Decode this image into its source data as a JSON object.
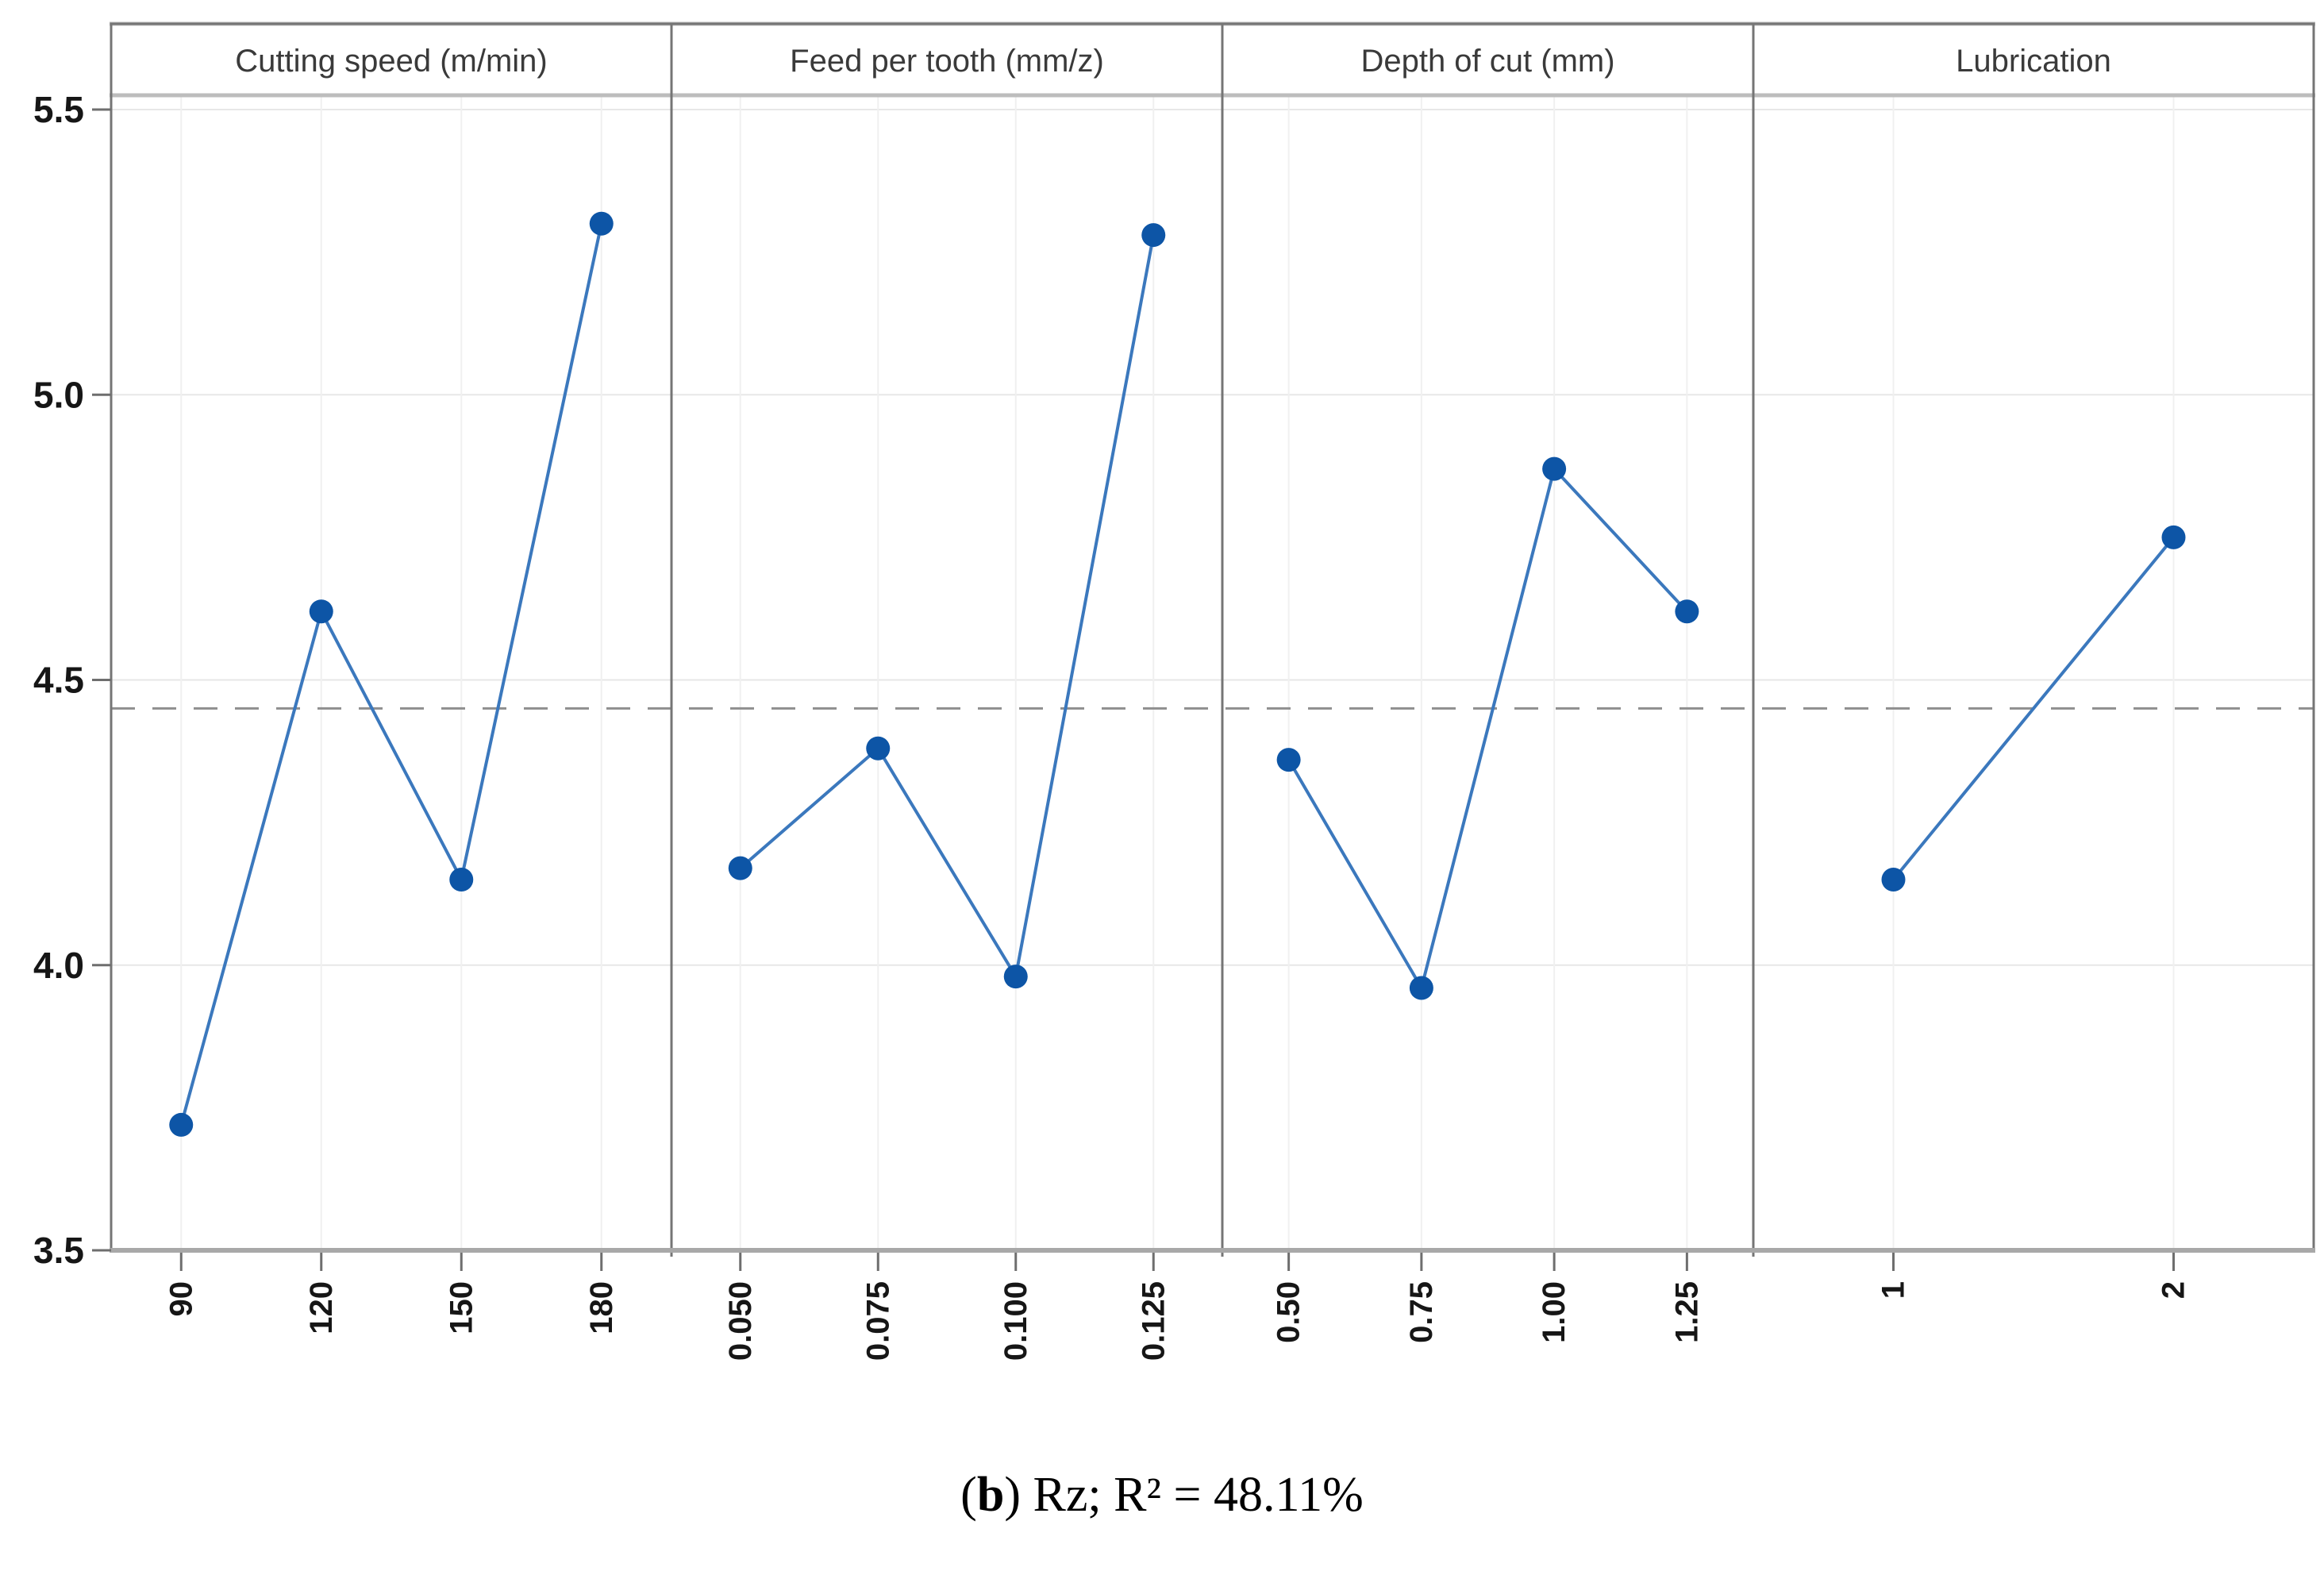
{
  "figure": {
    "caption": {
      "open": "(",
      "letter": "b",
      "close": ")",
      "text": " Rz; R² = 48.11%"
    }
  },
  "chart_data": {
    "type": "line",
    "subtype": "main-effects-plot",
    "title": "",
    "xlabel": "",
    "ylabel": "",
    "ylim": [
      3.5,
      5.53
    ],
    "yticks": [
      5.5,
      5.0,
      4.5,
      4.0,
      3.5
    ],
    "ytick_labels": [
      "5.5",
      "5.0",
      "4.5",
      "4.0",
      "3.5"
    ],
    "reference_line_mean": 4.45,
    "grid": true,
    "legend": "none",
    "panels": [
      {
        "title": "Cutting speed (m/min)",
        "categories": [
          "90",
          "120",
          "150",
          "180"
        ],
        "values": [
          3.72,
          4.62,
          4.15,
          5.3
        ]
      },
      {
        "title": "Feed per tooth (mm/z)",
        "categories": [
          "0.050",
          "0.075",
          "0.100",
          "0.125"
        ],
        "values": [
          4.17,
          4.38,
          3.98,
          5.28
        ]
      },
      {
        "title": "Depth of cut (mm)",
        "categories": [
          "0.50",
          "0.75",
          "1.00",
          "1.25"
        ],
        "values": [
          4.36,
          3.96,
          4.87,
          4.62
        ]
      },
      {
        "title": "Lubrication",
        "categories": [
          "1",
          "2"
        ],
        "values": [
          4.15,
          4.75
        ]
      }
    ],
    "colors": {
      "marker": "#0d55a6",
      "line": "#3b78bd",
      "grid_h": "#e7e7e7",
      "grid_v": "#f0f0f0",
      "reference": "#8f8f8f",
      "border": "#757575",
      "band_line": "#bdbdbd",
      "axis": "#a8a8a8",
      "tick": "#6e6e6e",
      "header_text": "#3a3a3a",
      "tick_text": "#161616"
    }
  }
}
